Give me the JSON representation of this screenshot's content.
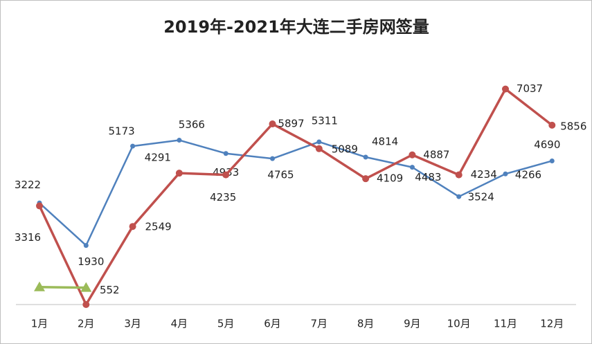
{
  "chart_data": {
    "type": "line",
    "title": "2019年-2021年大连二手房网签量",
    "categories": [
      "1月",
      "2月",
      "3月",
      "4月",
      "5月",
      "6月",
      "7月",
      "8月",
      "9月",
      "10月",
      "11月",
      "12月"
    ],
    "ylim": [
      0,
      8000
    ],
    "series": [
      {
        "color": "#4f81bd",
        "marker": "circle",
        "values": [
          3316,
          1930,
          5173,
          5366,
          4933,
          4765,
          5311,
          4814,
          4483,
          3524,
          4266,
          4690
        ],
        "value_labels": [
          "3316",
          "1930",
          "5173",
          "5366",
          "4933",
          "4765",
          "5311",
          "4814",
          "4483",
          "3524",
          "4266",
          "4690"
        ]
      },
      {
        "color": "#c0504d",
        "marker": "circle",
        "values": [
          3222,
          0,
          2549,
          4291,
          4235,
          5897,
          5089,
          4109,
          4887,
          4234,
          7037,
          5856
        ],
        "value_labels": [
          "3222",
          null,
          "2549",
          "4291",
          "4235",
          "5897",
          "5089",
          "4109",
          "4887",
          "4234",
          "7037",
          "5856"
        ]
      },
      {
        "color": "#9bbb59",
        "marker": "triangle",
        "values": [
          570,
          552,
          null,
          null,
          null,
          null,
          null,
          null,
          null,
          null,
          null,
          null
        ],
        "value_labels": [
          null,
          "552",
          null,
          null,
          null,
          null,
          null,
          null,
          null,
          null,
          null,
          null
        ]
      }
    ]
  }
}
